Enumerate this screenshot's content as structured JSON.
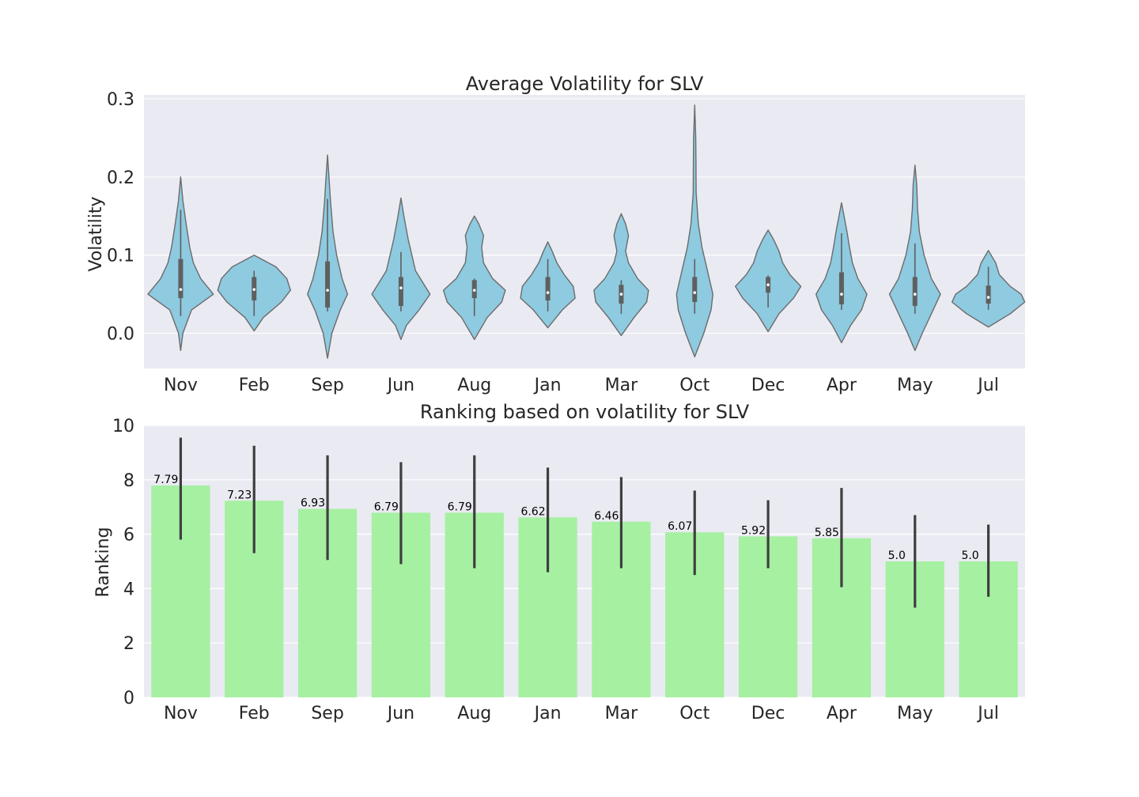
{
  "chart_data": [
    {
      "type": "violin",
      "title": "Average Volatility for SLV",
      "xlabel": "",
      "ylabel": "Volatility",
      "ylim": [
        -0.045,
        0.305
      ],
      "yticks": [
        0.0,
        0.1,
        0.2,
        0.3
      ],
      "ytick_labels": [
        "0.0",
        "0.1",
        "0.2",
        "0.3"
      ],
      "grid": true,
      "colors": {
        "fill": "#8ecae0",
        "edge": "#6b6b6b",
        "box": "#5f5f5f",
        "background": "#eaeaf2"
      },
      "categories": [
        "Nov",
        "Feb",
        "Sep",
        "Jun",
        "Aug",
        "Jan",
        "Mar",
        "Oct",
        "Dec",
        "Apr",
        "May",
        "Jul"
      ],
      "violins": [
        {
          "min": -0.022,
          "max": 0.2,
          "q1": 0.045,
          "median": 0.056,
          "q3": 0.095,
          "wlo": 0.022,
          "whi": 0.158,
          "profile": [
            [
              -0.022,
              0
            ],
            [
              0.0,
              0.06
            ],
            [
              0.03,
              0.3
            ],
            [
              0.05,
              0.9
            ],
            [
              0.07,
              0.55
            ],
            [
              0.09,
              0.35
            ],
            [
              0.11,
              0.25
            ],
            [
              0.14,
              0.15
            ],
            [
              0.17,
              0.06
            ],
            [
              0.2,
              0
            ]
          ]
        },
        {
          "min": 0.003,
          "max": 0.1,
          "q1": 0.042,
          "median": 0.056,
          "q3": 0.072,
          "wlo": 0.022,
          "whi": 0.08,
          "profile": [
            [
              0.003,
              0
            ],
            [
              0.02,
              0.25
            ],
            [
              0.04,
              0.75
            ],
            [
              0.055,
              1.0
            ],
            [
              0.07,
              0.9
            ],
            [
              0.085,
              0.6
            ],
            [
              0.1,
              0
            ]
          ]
        },
        {
          "min": -0.032,
          "max": 0.228,
          "q1": 0.033,
          "median": 0.055,
          "q3": 0.092,
          "wlo": 0.028,
          "whi": 0.172,
          "profile": [
            [
              -0.032,
              0
            ],
            [
              0.0,
              0.12
            ],
            [
              0.03,
              0.35
            ],
            [
              0.05,
              0.55
            ],
            [
              0.07,
              0.4
            ],
            [
              0.1,
              0.25
            ],
            [
              0.13,
              0.15
            ],
            [
              0.17,
              0.08
            ],
            [
              0.2,
              0.04
            ],
            [
              0.228,
              0
            ]
          ]
        },
        {
          "min": -0.008,
          "max": 0.173,
          "q1": 0.035,
          "median": 0.058,
          "q3": 0.072,
          "wlo": 0.028,
          "whi": 0.104,
          "profile": [
            [
              -0.008,
              0
            ],
            [
              0.01,
              0.15
            ],
            [
              0.03,
              0.5
            ],
            [
              0.05,
              0.8
            ],
            [
              0.065,
              0.6
            ],
            [
              0.08,
              0.4
            ],
            [
              0.1,
              0.3
            ],
            [
              0.12,
              0.2
            ],
            [
              0.15,
              0.08
            ],
            [
              0.173,
              0
            ]
          ]
        },
        {
          "min": -0.008,
          "max": 0.15,
          "q1": 0.045,
          "median": 0.055,
          "q3": 0.068,
          "wlo": 0.022,
          "whi": 0.07,
          "profile": [
            [
              -0.008,
              0
            ],
            [
              0.02,
              0.35
            ],
            [
              0.04,
              0.75
            ],
            [
              0.055,
              0.85
            ],
            [
              0.07,
              0.5
            ],
            [
              0.09,
              0.25
            ],
            [
              0.11,
              0.2
            ],
            [
              0.125,
              0.25
            ],
            [
              0.14,
              0.12
            ],
            [
              0.15,
              0
            ]
          ]
        },
        {
          "min": 0.007,
          "max": 0.117,
          "q1": 0.042,
          "median": 0.052,
          "q3": 0.072,
          "wlo": 0.028,
          "whi": 0.095,
          "profile": [
            [
              0.007,
              0
            ],
            [
              0.03,
              0.4
            ],
            [
              0.045,
              0.75
            ],
            [
              0.06,
              0.7
            ],
            [
              0.075,
              0.45
            ],
            [
              0.09,
              0.25
            ],
            [
              0.105,
              0.12
            ],
            [
              0.117,
              0
            ]
          ]
        },
        {
          "min": -0.003,
          "max": 0.153,
          "q1": 0.038,
          "median": 0.05,
          "q3": 0.062,
          "wlo": 0.025,
          "whi": 0.068,
          "profile": [
            [
              -0.003,
              0
            ],
            [
              0.02,
              0.35
            ],
            [
              0.04,
              0.7
            ],
            [
              0.055,
              0.75
            ],
            [
              0.07,
              0.45
            ],
            [
              0.09,
              0.2
            ],
            [
              0.105,
              0.12
            ],
            [
              0.125,
              0.2
            ],
            [
              0.14,
              0.12
            ],
            [
              0.153,
              0
            ]
          ]
        },
        {
          "min": -0.03,
          "max": 0.292,
          "q1": 0.04,
          "median": 0.052,
          "q3": 0.072,
          "wlo": 0.025,
          "whi": 0.095,
          "profile": [
            [
              -0.03,
              0
            ],
            [
              0.0,
              0.25
            ],
            [
              0.03,
              0.45
            ],
            [
              0.05,
              0.5
            ],
            [
              0.08,
              0.35
            ],
            [
              0.11,
              0.2
            ],
            [
              0.14,
              0.1
            ],
            [
              0.18,
              0.04
            ],
            [
              0.22,
              0.035
            ],
            [
              0.25,
              0.03
            ],
            [
              0.292,
              0
            ]
          ]
        },
        {
          "min": 0.002,
          "max": 0.132,
          "q1": 0.052,
          "median": 0.062,
          "q3": 0.072,
          "wlo": 0.033,
          "whi": 0.074,
          "profile": [
            [
              0.002,
              0
            ],
            [
              0.025,
              0.3
            ],
            [
              0.045,
              0.7
            ],
            [
              0.06,
              0.9
            ],
            [
              0.075,
              0.6
            ],
            [
              0.09,
              0.4
            ],
            [
              0.105,
              0.3
            ],
            [
              0.12,
              0.15
            ],
            [
              0.132,
              0
            ]
          ]
        },
        {
          "min": -0.012,
          "max": 0.167,
          "q1": 0.037,
          "median": 0.05,
          "q3": 0.078,
          "wlo": 0.03,
          "whi": 0.128,
          "profile": [
            [
              -0.012,
              0
            ],
            [
              0.01,
              0.25
            ],
            [
              0.03,
              0.55
            ],
            [
              0.05,
              0.7
            ],
            [
              0.07,
              0.45
            ],
            [
              0.09,
              0.3
            ],
            [
              0.11,
              0.22
            ],
            [
              0.13,
              0.15
            ],
            [
              0.15,
              0.07
            ],
            [
              0.167,
              0
            ]
          ]
        },
        {
          "min": -0.022,
          "max": 0.215,
          "q1": 0.035,
          "median": 0.05,
          "q3": 0.072,
          "wlo": 0.025,
          "whi": 0.115,
          "profile": [
            [
              -0.022,
              0
            ],
            [
              0.0,
              0.2
            ],
            [
              0.03,
              0.5
            ],
            [
              0.05,
              0.7
            ],
            [
              0.07,
              0.45
            ],
            [
              0.1,
              0.25
            ],
            [
              0.13,
              0.12
            ],
            [
              0.16,
              0.07
            ],
            [
              0.19,
              0.05
            ],
            [
              0.215,
              0
            ]
          ]
        },
        {
          "min": 0.008,
          "max": 0.106,
          "q1": 0.038,
          "median": 0.046,
          "q3": 0.061,
          "wlo": 0.03,
          "whi": 0.085,
          "profile": [
            [
              0.008,
              0
            ],
            [
              0.025,
              0.6
            ],
            [
              0.04,
              1.0
            ],
            [
              0.05,
              0.9
            ],
            [
              0.06,
              0.6
            ],
            [
              0.075,
              0.3
            ],
            [
              0.09,
              0.2
            ],
            [
              0.106,
              0
            ]
          ]
        }
      ]
    },
    {
      "type": "bar",
      "title": "Ranking based on volatility for SLV",
      "xlabel": "",
      "ylabel": "Ranking",
      "ylim": [
        0,
        10
      ],
      "yticks": [
        0,
        2,
        4,
        6,
        8,
        10
      ],
      "ytick_labels": [
        "0",
        "2",
        "4",
        "6",
        "8",
        "10"
      ],
      "grid": true,
      "colors": {
        "bar": "#a6f0a2",
        "error": "#3f3f3f",
        "background": "#eaeaf2"
      },
      "categories": [
        "Nov",
        "Feb",
        "Sep",
        "Jun",
        "Aug",
        "Jan",
        "Mar",
        "Oct",
        "Dec",
        "Apr",
        "May",
        "Jul"
      ],
      "values": [
        7.79,
        7.23,
        6.93,
        6.79,
        6.79,
        6.62,
        6.46,
        6.07,
        5.92,
        5.85,
        5.0,
        5.0
      ],
      "value_labels": [
        "7.79",
        "7.23",
        "6.93",
        "6.79",
        "6.79",
        "6.62",
        "6.46",
        "6.07",
        "5.92",
        "5.85",
        "5.0",
        "5.0"
      ],
      "error_low": [
        5.8,
        5.3,
        5.05,
        4.9,
        4.75,
        4.6,
        4.75,
        4.5,
        4.75,
        4.05,
        3.3,
        3.7
      ],
      "error_high": [
        9.55,
        9.25,
        8.9,
        8.65,
        8.9,
        8.45,
        8.1,
        7.6,
        7.25,
        7.7,
        6.7,
        6.35
      ]
    }
  ]
}
